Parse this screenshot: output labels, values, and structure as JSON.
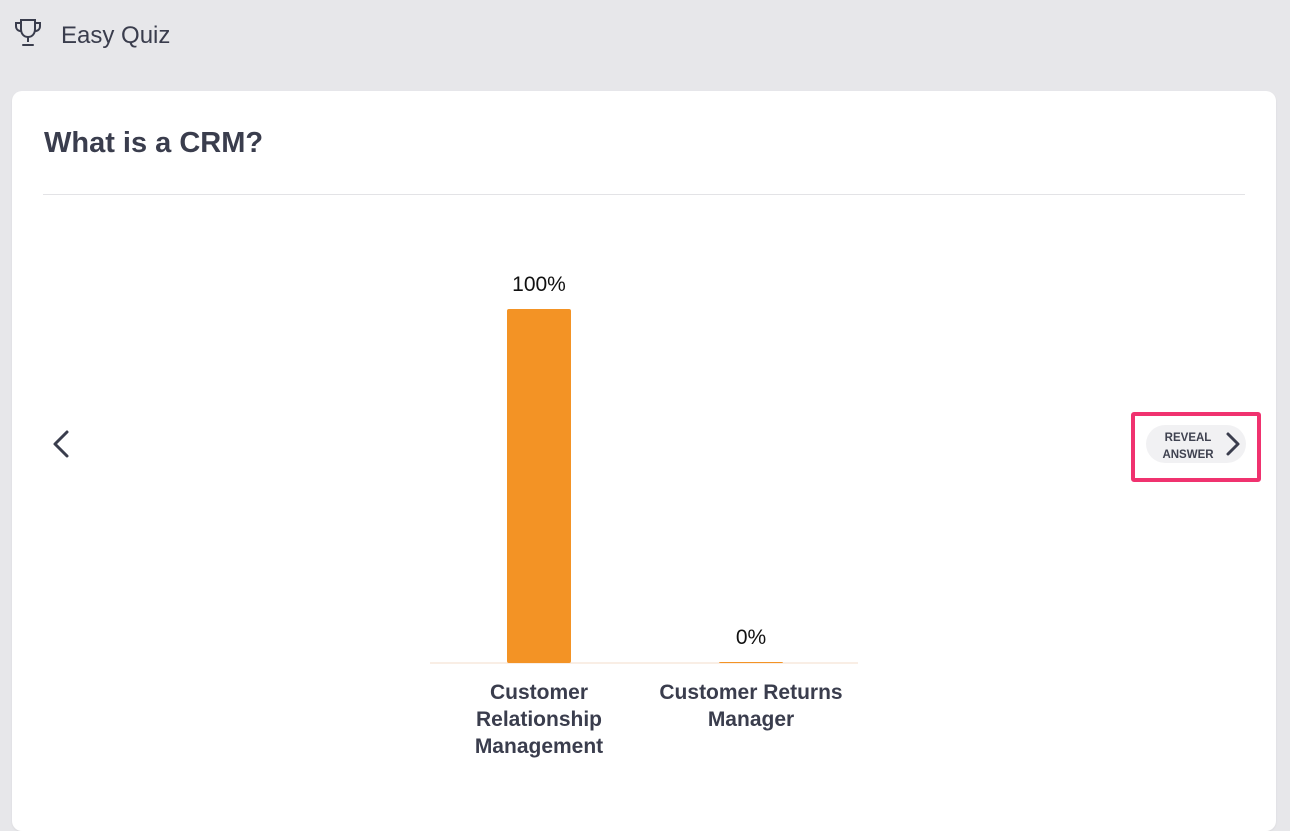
{
  "app": {
    "title": "Easy Quiz",
    "icon": "trophy-icon"
  },
  "question": {
    "text": "What is a CRM?"
  },
  "navigation": {
    "prev_icon": "chevron-left-icon",
    "next_icon": "chevron-right-icon",
    "reveal_label": "REVEAL\nANSWER"
  },
  "colors": {
    "bar": "#f39325",
    "highlight": "#f0326f",
    "text": "#3a3d4d"
  },
  "chart_data": {
    "type": "bar",
    "categories": [
      [
        "Customer",
        "Relationship",
        "Management"
      ],
      [
        "Customer Returns",
        "Manager"
      ]
    ],
    "values": [
      100,
      0
    ],
    "value_labels": [
      "100%",
      "0%"
    ],
    "ylim": [
      0,
      100
    ],
    "grid": false
  }
}
